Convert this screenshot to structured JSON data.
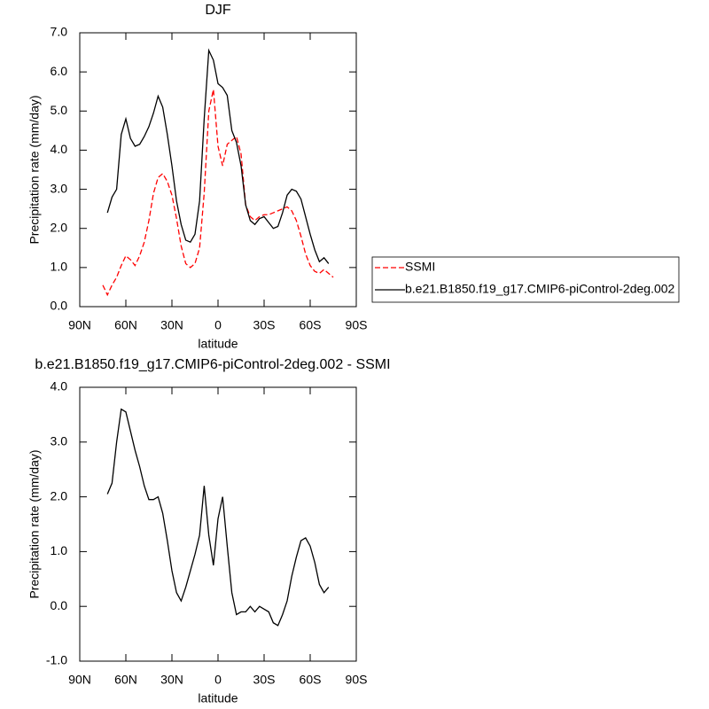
{
  "chart_data": [
    {
      "type": "line",
      "title": "DJF",
      "xlabel": "latitude",
      "ylabel": "Precipitation rate (mm/day)",
      "x": [
        75,
        72,
        69,
        66,
        63,
        60,
        57,
        54,
        51,
        48,
        45,
        42,
        39,
        36,
        33,
        30,
        27,
        24,
        21,
        18,
        15,
        12,
        9,
        6,
        3,
        0,
        -3,
        -6,
        -9,
        -12,
        -15,
        -18,
        -21,
        -24,
        -27,
        -30,
        -33,
        -36,
        -39,
        -42,
        -45,
        -48,
        -51,
        -54,
        -57,
        -60,
        -63,
        -66,
        -69,
        -72,
        -75
      ],
      "series": [
        {
          "name": "SSMI",
          "color": "#ff0000",
          "line_style": "dashed",
          "values": [
            0.55,
            0.3,
            0.55,
            0.75,
            1.05,
            1.3,
            1.2,
            1.05,
            1.3,
            1.65,
            2.2,
            2.9,
            3.3,
            3.4,
            3.2,
            2.85,
            2.25,
            1.55,
            1.1,
            1.0,
            1.1,
            1.5,
            2.9,
            5.0,
            5.55,
            4.1,
            3.6,
            4.15,
            4.25,
            4.35,
            3.9,
            2.6,
            2.3,
            2.2,
            2.3,
            2.35,
            2.35,
            2.4,
            2.45,
            2.5,
            2.55,
            2.45,
            2.2,
            1.8,
            1.35,
            1.05,
            0.9,
            0.85,
            0.95,
            0.85,
            0.75
          ]
        },
        {
          "name": "b.e21.B1850.f19_g17.CMIP6-piControl-2deg.002",
          "color": "#000000",
          "line_style": "solid",
          "values": [
            null,
            2.4,
            2.8,
            3.0,
            4.4,
            4.8,
            4.3,
            4.1,
            4.15,
            4.35,
            4.6,
            4.95,
            5.38,
            5.1,
            4.4,
            3.6,
            2.7,
            2.1,
            1.7,
            1.65,
            1.85,
            2.7,
            4.8,
            6.55,
            6.3,
            5.7,
            5.6,
            5.4,
            4.5,
            4.2,
            3.6,
            2.6,
            2.2,
            2.1,
            2.25,
            2.3,
            2.15,
            2.0,
            2.05,
            2.4,
            2.85,
            3.0,
            2.95,
            2.75,
            2.3,
            1.85,
            1.45,
            1.15,
            1.25,
            1.1,
            null
          ]
        }
      ],
      "xlim": [
        90,
        -90
      ],
      "xticks": [
        {
          "value": 90,
          "label": "90N"
        },
        {
          "value": 60,
          "label": "60N"
        },
        {
          "value": 30,
          "label": "30N"
        },
        0,
        {
          "value": -30,
          "label": "30S"
        },
        {
          "value": -60,
          "label": "60S"
        },
        {
          "value": -90,
          "label": "90S"
        }
      ],
      "ylim": [
        0,
        7
      ],
      "yticks": [
        {
          "value": 0,
          "label": "0.0"
        },
        {
          "value": 1,
          "label": "1.0"
        },
        {
          "value": 2,
          "label": "2.0"
        },
        {
          "value": 3,
          "label": "3.0"
        },
        {
          "value": 4,
          "label": "4.0"
        },
        {
          "value": 5,
          "label": "5.0"
        },
        {
          "value": 6,
          "label": "6.0"
        },
        {
          "value": 7,
          "label": "7.0"
        }
      ],
      "legend": "right"
    },
    {
      "type": "line",
      "title": "b.e21.B1850.f19_g17.CMIP6-piControl-2deg.002 - SSMI",
      "xlabel": "latitude",
      "ylabel": "Precipitation rate (mm/day)",
      "x": [
        72,
        69,
        66,
        63,
        60,
        57,
        54,
        51,
        48,
        45,
        42,
        39,
        36,
        33,
        30,
        27,
        24,
        21,
        18,
        15,
        12,
        9,
        6,
        3,
        0,
        -3,
        -6,
        -9,
        -12,
        -15,
        -18,
        -21,
        -24,
        -27,
        -30,
        -33,
        -36,
        -39,
        -42,
        -45,
        -48,
        -51,
        -54,
        -57,
        -60,
        -63,
        -66,
        -69,
        -72
      ],
      "series": [
        {
          "color": "#000000",
          "line_style": "solid",
          "values": [
            2.05,
            2.25,
            3.0,
            3.6,
            3.55,
            3.2,
            2.85,
            2.55,
            2.2,
            1.95,
            1.95,
            2.0,
            1.7,
            1.2,
            0.65,
            0.25,
            0.1,
            0.35,
            0.65,
            0.95,
            1.3,
            2.2,
            1.3,
            0.75,
            1.6,
            2.0,
            1.1,
            0.25,
            -0.15,
            -0.1,
            -0.1,
            0.0,
            -0.1,
            0.0,
            -0.05,
            -0.1,
            -0.3,
            -0.35,
            -0.15,
            0.1,
            0.55,
            0.9,
            1.2,
            1.25,
            1.1,
            0.8,
            0.4,
            0.25,
            0.35
          ]
        }
      ],
      "xlim": [
        90,
        -90
      ],
      "xticks": [
        {
          "value": 90,
          "label": "90N"
        },
        {
          "value": 60,
          "label": "60N"
        },
        {
          "value": 30,
          "label": "30N"
        },
        0,
        {
          "value": -30,
          "label": "30S"
        },
        {
          "value": -60,
          "label": "60S"
        },
        {
          "value": -90,
          "label": "90S"
        }
      ],
      "ylim": [
        -1,
        4
      ],
      "yticks": [
        {
          "value": -1,
          "label": "-1.0"
        },
        {
          "value": 0,
          "label": "0.0"
        },
        {
          "value": 1,
          "label": "1.0"
        },
        {
          "value": 2,
          "label": "2.0"
        },
        {
          "value": 3,
          "label": "3.0"
        },
        {
          "value": 4,
          "label": "4.0"
        }
      ]
    }
  ]
}
